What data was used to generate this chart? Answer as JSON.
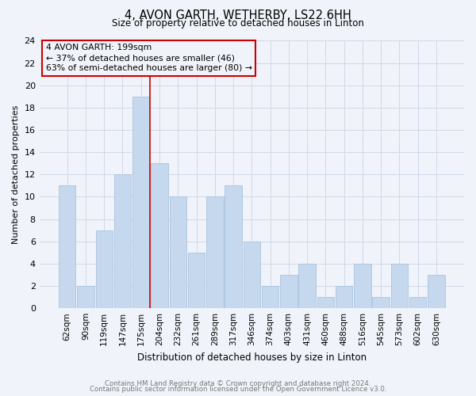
{
  "title1": "4, AVON GARTH, WETHERBY, LS22 6HH",
  "title2": "Size of property relative to detached houses in Linton",
  "xlabel": "Distribution of detached houses by size in Linton",
  "ylabel": "Number of detached properties",
  "categories": [
    "62sqm",
    "90sqm",
    "119sqm",
    "147sqm",
    "175sqm",
    "204sqm",
    "232sqm",
    "261sqm",
    "289sqm",
    "317sqm",
    "346sqm",
    "374sqm",
    "403sqm",
    "431sqm",
    "460sqm",
    "488sqm",
    "516sqm",
    "545sqm",
    "573sqm",
    "602sqm",
    "630sqm"
  ],
  "values": [
    11,
    2,
    7,
    12,
    19,
    13,
    10,
    5,
    10,
    11,
    6,
    2,
    3,
    4,
    1,
    2,
    4,
    1,
    4,
    1,
    3
  ],
  "bar_color": "#c5d8ed",
  "bar_edge_color": "#a8c4e0",
  "red_line_color": "#cc0000",
  "annotation_text_line1": "4 AVON GARTH: 199sqm",
  "annotation_text_line2": "← 37% of detached houses are smaller (46)",
  "annotation_text_line3": "63% of semi-detached houses are larger (80) →",
  "ylim": [
    0,
    24
  ],
  "yticks": [
    0,
    2,
    4,
    6,
    8,
    10,
    12,
    14,
    16,
    18,
    20,
    22,
    24
  ],
  "grid_color": "#d0d8e8",
  "footer1": "Contains HM Land Registry data © Crown copyright and database right 2024.",
  "footer2": "Contains public sector information licensed under the Open Government Licence v3.0.",
  "bg_color": "#f0f4fa"
}
